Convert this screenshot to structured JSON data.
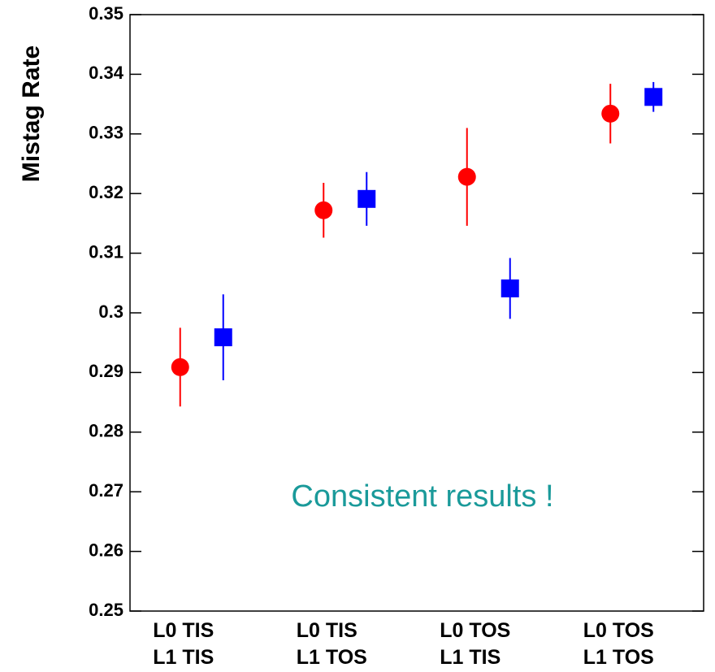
{
  "chart_data": {
    "type": "scatter",
    "y_label": "Mistag Rate",
    "annotation": "Consistent results !",
    "categories": [
      "L0 TIS\nL1 TIS",
      "L0 TIS\nL1 TOS",
      "L0 TOS\nL1 TIS",
      "L0 TOS\nL1 TOS"
    ],
    "series": [
      {
        "color": "#ff0000",
        "marker": "circle",
        "values": [
          0.2909,
          0.3172,
          0.3228,
          0.3334
        ],
        "errors": [
          0.0066,
          0.0046,
          0.0082,
          0.005
        ]
      },
      {
        "color": "#0000ff",
        "marker": "square",
        "values": [
          0.2959,
          0.3191,
          0.3041,
          0.3362
        ],
        "errors": [
          0.0072,
          0.0045,
          0.0051,
          0.0025
        ]
      }
    ],
    "ylim": [
      0.25,
      0.35
    ],
    "yticks": [
      0.25,
      0.26,
      0.27,
      0.28,
      0.29,
      0.3,
      0.31,
      0.32,
      0.33,
      0.34,
      0.35
    ],
    "annotation_color": "#1a9a9a"
  }
}
